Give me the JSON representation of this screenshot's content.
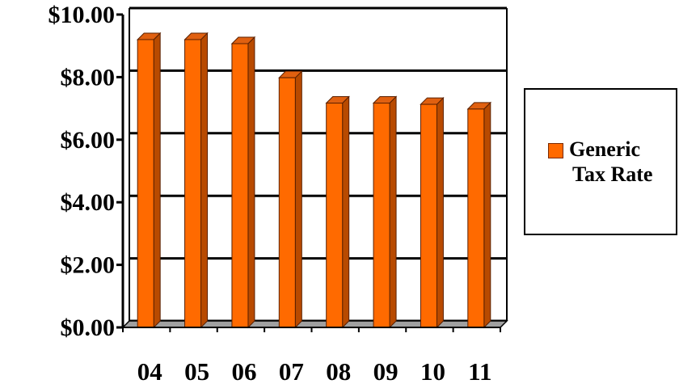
{
  "chart_data": {
    "type": "bar",
    "categories": [
      "04",
      "05",
      "06",
      "07",
      "08",
      "09",
      "10",
      "11"
    ],
    "series": [
      {
        "name": "Generic Tax Rate",
        "values": [
          9.2,
          9.2,
          9.07,
          7.98,
          7.17,
          7.17,
          7.13,
          6.98
        ]
      }
    ],
    "title": "",
    "xlabel": "",
    "ylabel": "",
    "ylim": [
      0,
      10
    ],
    "yticks": [
      "$0.00",
      "$2.00",
      "$4.00",
      "$6.00",
      "$8.00",
      "$10.00"
    ],
    "grid": true,
    "legend_position": "right",
    "style": "3d-bar",
    "colors": {
      "bar_front": "#ff6a00",
      "bar_side": "#b84a00",
      "bar_top": "#e06010",
      "floor": "#a0a0a0"
    }
  },
  "legend": {
    "line1": "Generic",
    "line2": "Tax Rate"
  }
}
